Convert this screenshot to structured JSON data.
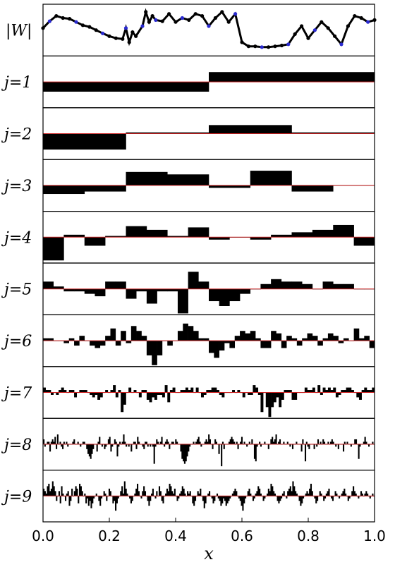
{
  "chart_data": {
    "type": "bar",
    "xlabel": "x",
    "xlim": [
      0.0,
      1.0
    ],
    "x_ticks": [
      "0.0",
      "0.2",
      "0.4",
      "0.6",
      "0.8",
      "1.0"
    ],
    "top_panel": {
      "label": "|W|",
      "type": "scatter",
      "x": [
        0.0,
        0.02,
        0.04,
        0.06,
        0.08,
        0.1,
        0.12,
        0.14,
        0.16,
        0.18,
        0.2,
        0.22,
        0.24,
        0.25,
        0.26,
        0.27,
        0.28,
        0.3,
        0.31,
        0.32,
        0.33,
        0.34,
        0.36,
        0.38,
        0.4,
        0.42,
        0.44,
        0.46,
        0.48,
        0.5,
        0.52,
        0.54,
        0.56,
        0.58,
        0.6,
        0.62,
        0.64,
        0.66,
        0.68,
        0.7,
        0.72,
        0.74,
        0.76,
        0.78,
        0.8,
        0.82,
        0.84,
        0.86,
        0.88,
        0.9,
        0.92,
        0.94,
        0.96,
        0.98,
        1.0
      ],
      "y": [
        0.55,
        0.72,
        0.85,
        0.8,
        0.78,
        0.7,
        0.62,
        0.58,
        0.5,
        0.42,
        0.35,
        0.3,
        0.28,
        0.55,
        0.2,
        0.45,
        0.35,
        0.6,
        0.95,
        0.7,
        0.85,
        0.75,
        0.72,
        0.9,
        0.7,
        0.8,
        0.75,
        0.9,
        0.85,
        0.6,
        0.8,
        0.95,
        0.7,
        0.9,
        0.2,
        0.1,
        0.1,
        0.08,
        0.08,
        0.1,
        0.12,
        0.15,
        0.4,
        0.6,
        0.3,
        0.5,
        0.7,
        0.55,
        0.35,
        0.15,
        0.6,
        0.85,
        0.8,
        0.7,
        0.75
      ],
      "ylim": [
        0,
        1
      ]
    },
    "row_labels": [
      "j=1",
      "j=2",
      "j=3",
      "j=4",
      "j=5",
      "j=6",
      "j=7",
      "j=8",
      "j=9"
    ],
    "series": [
      {
        "values": [
          -0.4,
          0.4
        ]
      },
      {
        "values": [
          -0.65,
          0.05,
          0.35,
          0.05
        ]
      },
      {
        "values": [
          -0.35,
          -0.25,
          0.55,
          0.45,
          -0.1,
          0.6,
          -0.25,
          0.0
        ]
      },
      {
        "values": [
          -0.95,
          0.1,
          -0.35,
          0.05,
          0.45,
          0.3,
          0.05,
          0.4,
          -0.1,
          0.0,
          -0.1,
          0.1,
          0.2,
          0.3,
          0.5,
          -0.35
        ]
      },
      {
        "values": [
          0.3,
          0.1,
          -0.1,
          -0.1,
          -0.2,
          -0.3,
          0.3,
          0.3,
          -0.4,
          -0.1,
          -0.6,
          -0.1,
          -0.1,
          -1.0,
          0.7,
          0.3,
          -0.5,
          -0.7,
          -0.5,
          -0.2,
          0.0,
          0.2,
          0.4,
          0.3,
          0.3,
          0.2,
          0.0,
          0.3,
          0.2,
          0.2,
          0.0,
          0.0
        ]
      },
      {
        "values": [
          0.1,
          0.1,
          0.0,
          0.0,
          -0.1,
          0.1,
          -0.2,
          0.2,
          0.0,
          -0.2,
          -0.3,
          -0.2,
          0.2,
          0.5,
          -0.2,
          0.4,
          -0.1,
          0.6,
          0.4,
          0.2,
          -0.6,
          -1.0,
          -0.6,
          0.0,
          -0.2,
          0.0,
          0.4,
          0.7,
          0.6,
          0.4,
          0.1,
          0.1,
          -0.5,
          -0.7,
          -0.4,
          -0.1,
          -0.3,
          0.2,
          0.4,
          0.3,
          0.4,
          0.1,
          -0.3,
          -0.3,
          0.4,
          0.3,
          -0.3,
          0.2,
          0.1,
          -0.2,
          0.1,
          0.3,
          0.2,
          -0.2,
          0.1,
          0.3,
          0.2,
          -0.1,
          0.1,
          0.0,
          0.5,
          0.1,
          0.2,
          -0.3
        ]
      },
      {
        "values": [
          0.2,
          0.1,
          0.1,
          -0.1,
          0.0,
          -0.1,
          0.1,
          0.2,
          0.1,
          0.0,
          0.1,
          0.1,
          -0.2,
          0.0,
          0.1,
          0.1,
          0.1,
          0.0,
          -0.1,
          -0.2,
          -0.1,
          -0.3,
          -0.2,
          0.0,
          0.1,
          0.0,
          0.1,
          0.3,
          -0.2,
          0.1,
          -0.8,
          -0.5,
          0.0,
          0.2,
          0.0,
          0.1,
          0.0,
          -0.2,
          0.1,
          0.1,
          -0.3,
          -0.4,
          -0.2,
          -0.3,
          -0.1,
          -0.1,
          -0.2,
          0.3,
          -0.4,
          0.1,
          0.2,
          0.0,
          0.0,
          0.1,
          0.1,
          0.2,
          0.1,
          0.2,
          0.0,
          0.2,
          0.0,
          -0.2,
          -0.1,
          0.1,
          0.1,
          0.2,
          0.2,
          0.1,
          -0.1,
          -0.2,
          0.0,
          0.0,
          0.0,
          0.1,
          0.0,
          0.1,
          0.0,
          -0.2,
          0.0,
          -0.1,
          -0.1,
          0.3,
          0.2,
          -0.1,
          -0.8,
          0.0,
          -0.6,
          -1.0,
          -0.6,
          -0.4,
          -0.2,
          -0.6,
          -0.3,
          0.1,
          0.1,
          0.1,
          -0.3,
          -0.3,
          0.0,
          0.0,
          0.0,
          0.2,
          0.1,
          0.1,
          0.2,
          0.0,
          0.3,
          -0.1,
          0.2,
          0.1,
          0.2,
          0.1,
          0.2,
          -0.2,
          -0.1,
          0.1,
          0.1,
          0.2,
          0.2,
          0.1,
          0.0,
          -0.2,
          -0.3,
          0.1,
          0.2,
          0.1,
          0.1,
          0.2
        ]
      },
      {
        "values": [
          0.2,
          -0.1,
          0.0,
          0.1,
          0.1,
          -0.3,
          0.1,
          0.2,
          0.1,
          0.3,
          -0.2,
          0.4,
          0.0,
          0.1,
          -0.1,
          -0.2,
          0.1,
          0.0,
          0.1,
          -0.1,
          0.0,
          0.0,
          0.0,
          0.1,
          0.2,
          0.0,
          0.0,
          0.1,
          0.0,
          -0.1,
          0.0,
          0.1,
          0.1,
          0.0,
          -0.2,
          -0.4,
          -0.5,
          -0.6,
          -0.4,
          -0.2,
          0.0,
          0.0,
          -0.3,
          0.1,
          0.3,
          0.0,
          -0.1,
          0.0,
          -0.2,
          -0.1,
          0.0,
          0.2,
          0.3,
          -0.3,
          -0.1,
          0.0,
          0.2,
          0.1,
          -0.5,
          -0.1,
          0.1,
          0.0,
          0.1,
          0.4,
          0.1,
          -0.1,
          0.0,
          -0.1,
          0.0,
          -0.3,
          0.0,
          0.1,
          0.1,
          -0.2,
          0.3,
          0.1,
          0.0,
          0.0,
          -0.1,
          -0.2,
          0.1,
          0.1,
          -0.1,
          0.0,
          -0.1,
          0.0,
          -0.1,
          -0.8,
          -0.1,
          0.2,
          0.1,
          0.0,
          0.1,
          0.3,
          0.0,
          -0.1,
          0.1,
          0.2,
          0.1,
          -0.2,
          0.0,
          0.1,
          0.1,
          0.0,
          0.2,
          0.1,
          0.0,
          0.0,
          -0.3,
          -0.6,
          -0.7,
          -0.8,
          -0.7,
          -0.5,
          -0.3,
          -0.1,
          0.0,
          0.0,
          0.1,
          0.0,
          0.1,
          0.2,
          0.3,
          0.1,
          -0.1,
          0.0,
          0.0,
          0.1,
          0.2,
          0.1,
          0.4,
          0.2,
          0.0,
          -0.2,
          0.0,
          0.2,
          0.1,
          0.0,
          -0.4,
          0.0,
          -0.9,
          0.1,
          -0.2,
          0.0,
          0.0,
          0.0,
          0.1,
          0.2,
          0.3,
          0.2,
          0.1,
          0.0,
          0.1,
          -0.2,
          0.0,
          0.1,
          0.3,
          0.0,
          0.1,
          0.0,
          -0.1,
          0.0,
          0.1,
          0.0,
          0.2,
          0.0,
          -0.6,
          -0.7,
          -0.1,
          0.0,
          0.1,
          -0.1,
          0.0,
          0.0,
          0.1,
          0.0,
          0.0,
          -0.2,
          0.0,
          0.2,
          0.3,
          0.1,
          0.2,
          0.4,
          0.0,
          0.1,
          0.2,
          0.0,
          0.0,
          0.1,
          0.0,
          0.0,
          0.1,
          0.0,
          -0.1,
          0.0,
          -0.2,
          0.0,
          0.0,
          0.1,
          0.0,
          0.0,
          0.0,
          -0.3,
          0.2,
          0.0,
          -0.7,
          0.1,
          -0.1,
          -0.2,
          0.0,
          0.0,
          0.0,
          -0.2,
          0.0,
          -0.1,
          0.2,
          0.0,
          0.1,
          0.0,
          0.2,
          0.1,
          0.0,
          0.0,
          0.1,
          0.0,
          0.1,
          0.2,
          0.1,
          0.0,
          -0.1,
          0.0,
          -0.2,
          0.0,
          0.0,
          0.0,
          -0.3,
          0.1,
          0.0,
          0.1,
          0.0,
          0.0,
          -0.1,
          0.0,
          0.0,
          0.2,
          0.2,
          0.0,
          -0.6,
          -0.1,
          0.0,
          0.0,
          0.1,
          0.3,
          0.1,
          0.0,
          -0.1,
          0.0,
          0.0,
          0.1,
          0.0
        ]
      },
      {
        "values": [
          0.3,
          0.2,
          0.1,
          0.4,
          0.5,
          0.2,
          0.3,
          0.6,
          0.4,
          0.2,
          -0.2,
          0.0,
          0.2,
          -0.3,
          0.4,
          0.1,
          0.0,
          -0.2,
          0.1,
          0.2,
          -0.4,
          -0.2,
          0.3,
          0.0,
          0.2,
          0.4,
          0.3,
          -0.3,
          0.5,
          0.4,
          0.2,
          0.0,
          0.1,
          -0.3,
          -0.1,
          -0.4,
          -0.2,
          -0.5,
          -0.3,
          -0.1,
          0.0,
          0.1,
          0.0,
          -0.2,
          -0.4,
          -0.1,
          0.0,
          0.2,
          0.1,
          -0.2,
          0.0,
          0.3,
          0.2,
          0.0,
          -0.3,
          -0.2,
          -0.6,
          -0.3,
          -0.1,
          0.0,
          0.2,
          0.4,
          0.1,
          0.6,
          0.3,
          0.1,
          0.0,
          -0.1,
          -0.3,
          -0.2,
          0.0,
          0.1,
          0.3,
          0.5,
          0.2,
          0.0,
          -0.1,
          0.2,
          0.4,
          0.2,
          0.0,
          -0.2,
          -0.4,
          -0.2,
          0.1,
          0.3,
          0.0,
          -0.1,
          0.2,
          0.0,
          0.4,
          0.2,
          -0.2,
          -0.3,
          0.0,
          0.1,
          0.3,
          0.2,
          0.5,
          0.4,
          0.2,
          0.1,
          0.3,
          0.0,
          -0.2,
          -0.1,
          0.1,
          0.2,
          0.4,
          0.3,
          0.1,
          0.0,
          0.2,
          0.1,
          0.2,
          0.0,
          -0.3,
          -0.4,
          -0.2,
          0.0,
          0.2,
          0.1,
          0.3,
          0.0,
          -0.2,
          -0.5,
          -0.3,
          0.0,
          0.1,
          0.2,
          0.0,
          -0.1,
          -0.3,
          -0.2,
          0.0,
          0.1,
          -0.1,
          -0.2,
          -0.4,
          -0.3,
          -0.1,
          -0.2,
          -0.4,
          -0.3,
          -0.2,
          -0.1,
          0.0,
          0.1,
          0.2,
          0.3,
          0.2,
          0.0,
          -0.1,
          -0.2,
          -0.4,
          -0.6,
          -0.3,
          -0.1,
          0.0,
          0.2,
          0.3,
          0.1,
          0.0,
          -0.2,
          -0.1,
          0.1,
          0.2,
          0.4,
          0.3,
          0.1,
          0.0,
          -0.2,
          -0.1,
          0.0,
          0.1,
          0.3,
          0.2,
          0.5,
          0.4,
          0.2,
          0.1,
          0.0,
          -0.2,
          -0.3,
          -0.2,
          -0.1,
          0.1,
          0.2,
          0.0,
          -0.1,
          0.2,
          0.3,
          0.4,
          0.2,
          0.6,
          0.4,
          0.2,
          0.1,
          0.0,
          -0.2,
          -0.4,
          -0.3,
          -0.1,
          0.0,
          0.1,
          0.2,
          0.1,
          0.3,
          0.5,
          0.2,
          0.0,
          -0.1,
          -0.3,
          -0.2,
          0.0,
          0.2,
          0.1,
          0.0,
          -0.2,
          -0.1,
          0.1,
          0.2,
          0.3,
          0.0,
          -0.1,
          -0.2,
          0.0,
          0.2,
          0.1,
          0.0,
          -0.1,
          0.0,
          0.1,
          0.2,
          0.3,
          0.1,
          0.0,
          -0.2,
          -0.1,
          0.0,
          0.2,
          0.4,
          0.2,
          0.1,
          0.0,
          -0.1,
          0.0,
          0.2,
          0.1,
          0.0,
          0.1,
          0.2,
          0.1,
          0.0,
          -0.1,
          0.0,
          0.1,
          0.0
        ]
      }
    ],
    "ylim": [
      -1,
      1
    ]
  }
}
